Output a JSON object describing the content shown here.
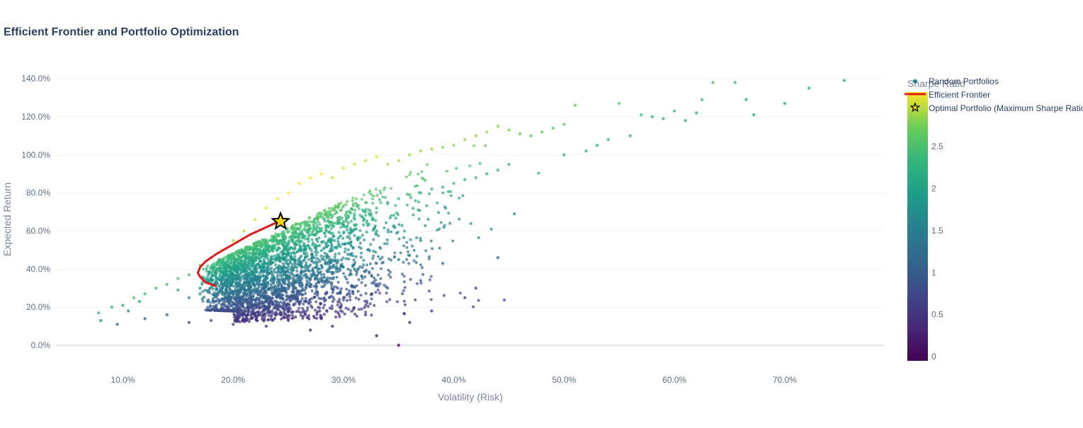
{
  "chart_data": {
    "type": "scatter",
    "title": "Efficient Frontier and Portfolio Optimization",
    "xlabel": "Volatility (Risk)",
    "ylabel": "Expected Return",
    "xlim": [
      0.04,
      0.79
    ],
    "ylim": [
      -0.1,
      1.46
    ],
    "x_ticks": [
      {
        "value": 0.1,
        "label": "10.0%"
      },
      {
        "value": 0.2,
        "label": "20.0%"
      },
      {
        "value": 0.3,
        "label": "30.0%"
      },
      {
        "value": 0.4,
        "label": "40.0%"
      },
      {
        "value": 0.5,
        "label": "50.0%"
      },
      {
        "value": 0.6,
        "label": "60.0%"
      },
      {
        "value": 0.7,
        "label": "70.0%"
      }
    ],
    "y_ticks": [
      {
        "value": 0.0,
        "label": "0.0%"
      },
      {
        "value": 0.2,
        "label": "20.0%"
      },
      {
        "value": 0.4,
        "label": "40.0%"
      },
      {
        "value": 0.6,
        "label": "60.0%"
      },
      {
        "value": 0.8,
        "label": "80.0%"
      },
      {
        "value": 1.0,
        "label": "100.0%"
      },
      {
        "value": 1.2,
        "label": "120.0%"
      },
      {
        "value": 1.4,
        "label": "140.0%"
      }
    ],
    "grid": true,
    "legend_position": "top-right",
    "series": [
      {
        "name": "Random Portfolios",
        "kind": "markers",
        "colorscale": "Viridis",
        "x": [
          0.078,
          0.08,
          0.09,
          0.095,
          0.1,
          0.105,
          0.11,
          0.115,
          0.12,
          0.13,
          0.14,
          0.15,
          0.15,
          0.16,
          0.16,
          0.17,
          0.17,
          0.18,
          0.18,
          0.19,
          0.19,
          0.2,
          0.2,
          0.21,
          0.21,
          0.22,
          0.22,
          0.23,
          0.23,
          0.24,
          0.24,
          0.25,
          0.25,
          0.26,
          0.26,
          0.27,
          0.27,
          0.28,
          0.28,
          0.29,
          0.29,
          0.3,
          0.3,
          0.31,
          0.31,
          0.32,
          0.32,
          0.33,
          0.33,
          0.34,
          0.34,
          0.35,
          0.35,
          0.36,
          0.36,
          0.37,
          0.37,
          0.38,
          0.38,
          0.39,
          0.39,
          0.4,
          0.4,
          0.41,
          0.41,
          0.42,
          0.42,
          0.43,
          0.43,
          0.44,
          0.44,
          0.45,
          0.45,
          0.46,
          0.47,
          0.48,
          0.49,
          0.5,
          0.5,
          0.51,
          0.52,
          0.53,
          0.54,
          0.55,
          0.56,
          0.57,
          0.58,
          0.59,
          0.6,
          0.61,
          0.62,
          0.625,
          0.635,
          0.655,
          0.665,
          0.672,
          0.7,
          0.722,
          0.754,
          0.35,
          0.33,
          0.27,
          0.29,
          0.36,
          0.38,
          0.41,
          0.44,
          0.455,
          0.42,
          0.39,
          0.37,
          0.32,
          0.28,
          0.25,
          0.23,
          0.2,
          0.18,
          0.16,
          0.14,
          0.12,
          0.26,
          0.3,
          0.34,
          0.24,
          0.22,
          0.27,
          0.31,
          0.35,
          0.37,
          0.33,
          0.29,
          0.26,
          0.21,
          0.19,
          0.17,
          0.23,
          0.25,
          0.28
        ],
        "y": [
          0.17,
          0.13,
          0.2,
          0.11,
          0.21,
          0.18,
          0.25,
          0.23,
          0.27,
          0.3,
          0.32,
          0.35,
          0.29,
          0.37,
          0.25,
          0.42,
          0.3,
          0.46,
          0.33,
          0.5,
          0.36,
          0.55,
          0.4,
          0.6,
          0.42,
          0.66,
          0.45,
          0.72,
          0.48,
          0.77,
          0.5,
          0.8,
          0.53,
          0.85,
          0.55,
          0.88,
          0.58,
          0.9,
          0.6,
          0.88,
          0.63,
          0.93,
          0.65,
          0.95,
          0.68,
          0.97,
          0.7,
          0.99,
          0.72,
          0.95,
          0.75,
          0.97,
          0.77,
          1.0,
          0.79,
          1.02,
          0.8,
          1.03,
          0.82,
          1.04,
          0.83,
          1.05,
          0.85,
          1.08,
          0.87,
          1.1,
          0.88,
          1.12,
          0.9,
          1.15,
          0.92,
          1.13,
          0.95,
          1.11,
          1.1,
          1.12,
          1.14,
          1.16,
          1.0,
          1.26,
          1.02,
          1.05,
          1.08,
          1.27,
          1.1,
          1.21,
          1.2,
          1.19,
          1.23,
          1.18,
          1.22,
          1.29,
          1.38,
          1.38,
          1.29,
          1.21,
          1.27,
          1.35,
          1.39,
          0.0,
          0.05,
          0.08,
          0.1,
          0.12,
          0.18,
          0.25,
          0.46,
          0.69,
          0.3,
          0.43,
          0.34,
          0.16,
          0.14,
          0.13,
          0.1,
          0.11,
          0.13,
          0.12,
          0.16,
          0.14,
          0.22,
          0.25,
          0.3,
          0.28,
          0.3,
          0.35,
          0.4,
          0.45,
          0.55,
          0.6,
          0.5,
          0.45,
          0.3,
          0.28,
          0.27,
          0.35,
          0.4,
          0.42
        ],
        "sharpe": [
          2.1,
          1.5,
          2.0,
          1.0,
          1.9,
          1.6,
          2.2,
          1.9,
          2.2,
          2.2,
          2.2,
          2.3,
          1.8,
          2.2,
          1.5,
          2.4,
          1.6,
          2.5,
          1.7,
          2.6,
          1.7,
          2.7,
          1.8,
          2.8,
          1.8,
          2.9,
          1.9,
          3.0,
          1.9,
          3.1,
          1.9,
          3.1,
          2.0,
          3.1,
          1.9,
          3.1,
          2.0,
          3.1,
          2.0,
          2.9,
          2.0,
          3.0,
          2.0,
          2.9,
          2.1,
          2.9,
          2.1,
          2.9,
          2.1,
          2.7,
          2.1,
          2.7,
          2.1,
          2.7,
          2.1,
          2.7,
          2.1,
          2.6,
          2.1,
          2.6,
          2.1,
          2.6,
          2.1,
          2.6,
          2.1,
          2.6,
          2.0,
          2.6,
          2.0,
          2.6,
          2.0,
          2.5,
          2.1,
          2.4,
          2.3,
          2.3,
          2.3,
          2.3,
          2.0,
          2.4,
          1.9,
          1.9,
          2.0,
          2.3,
          1.9,
          2.1,
          2.0,
          2.0,
          2.0,
          1.9,
          1.9,
          2.1,
          2.2,
          2.1,
          1.9,
          1.8,
          1.8,
          1.9,
          1.8,
          0.0,
          0.1,
          0.2,
          0.3,
          0.3,
          0.4,
          0.6,
          1.0,
          1.5,
          0.7,
          1.1,
          0.9,
          0.5,
          0.5,
          0.5,
          0.4,
          0.5,
          0.7,
          0.7,
          1.1,
          1.1,
          0.8,
          0.8,
          0.9,
          1.1,
          1.3,
          1.3,
          1.3,
          1.3,
          1.5,
          1.8,
          1.7,
          1.7,
          1.4,
          1.5,
          1.6,
          1.5,
          1.6,
          1.5
        ]
      },
      {
        "name": "Efficient Frontier",
        "kind": "line",
        "color": "#dd1d1d",
        "x": [
          0.185,
          0.175,
          0.17,
          0.168,
          0.17,
          0.175,
          0.185,
          0.2,
          0.215,
          0.23,
          0.245
        ],
        "y": [
          0.31,
          0.33,
          0.36,
          0.38,
          0.41,
          0.44,
          0.48,
          0.53,
          0.58,
          0.62,
          0.66
        ]
      },
      {
        "name": "Optimal Portfolio (Maximum Sharpe Ratio)",
        "kind": "marker-star",
        "color": "#f5d20e",
        "x": [
          0.243
        ],
        "y": [
          0.65
        ]
      }
    ],
    "colorbar": {
      "title": "Sharpe Ratio",
      "range": [
        -0.05,
        3.15
      ],
      "ticks": [
        {
          "value": 0,
          "label": "0"
        },
        {
          "value": 0.5,
          "label": "0.5"
        },
        {
          "value": 1,
          "label": "1"
        },
        {
          "value": 1.5,
          "label": "1.5"
        },
        {
          "value": 2,
          "label": "2"
        },
        {
          "value": 2.5,
          "label": "2.5"
        }
      ]
    }
  }
}
